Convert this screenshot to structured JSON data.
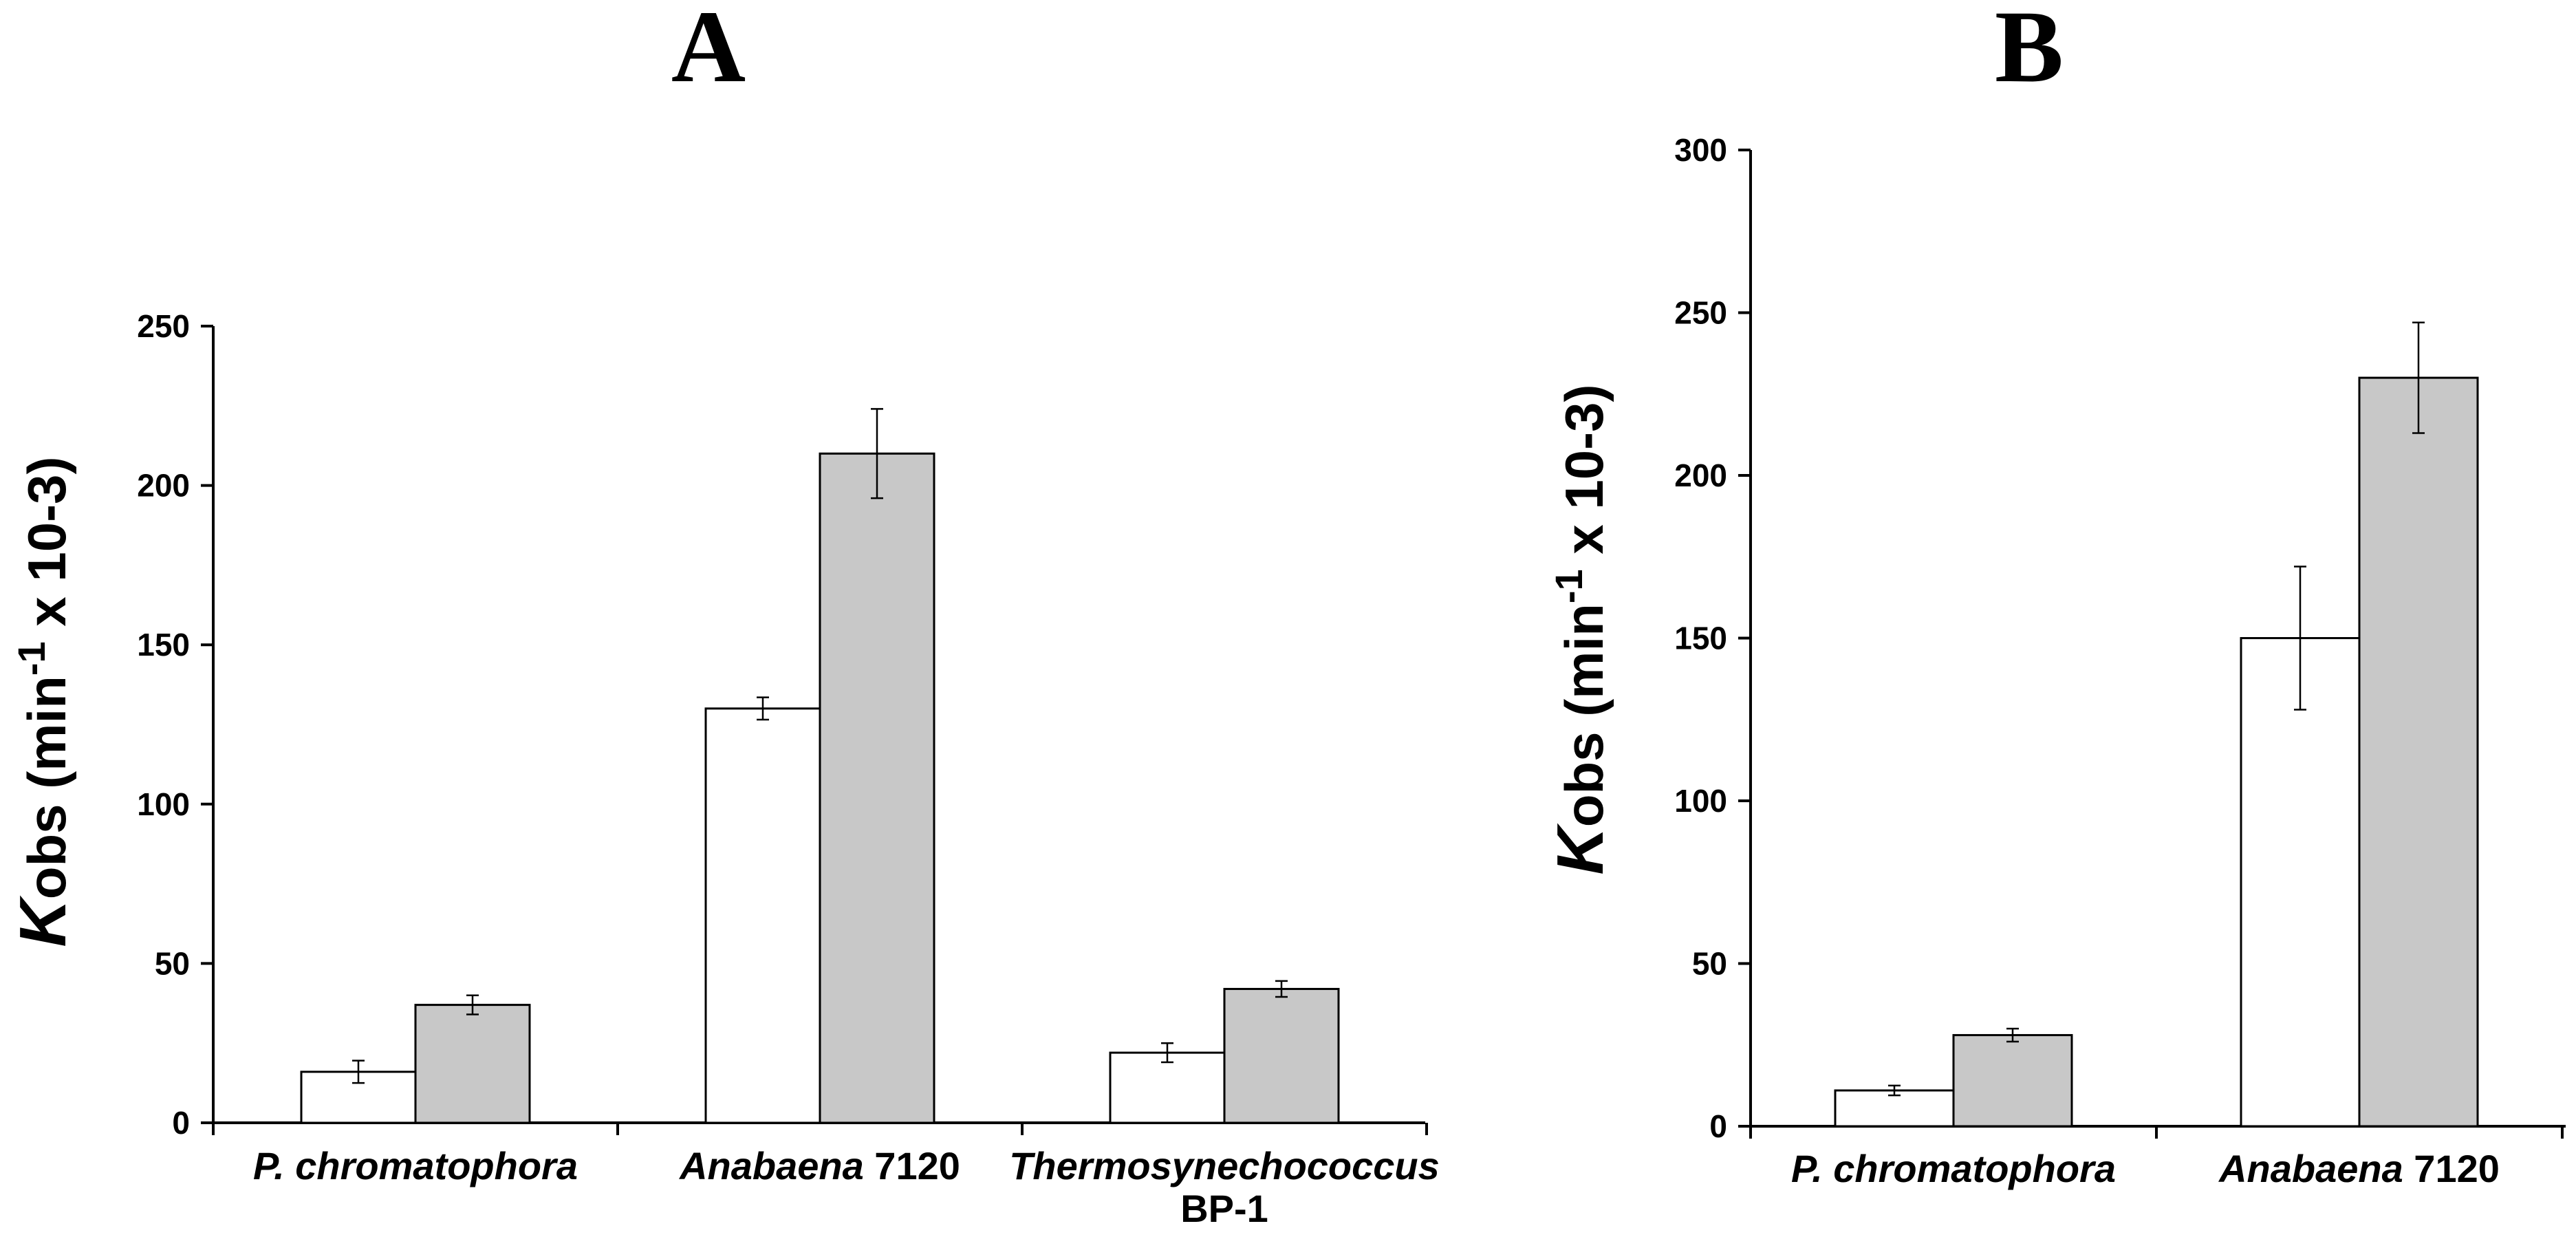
{
  "chart_data": [
    {
      "panel": "A",
      "type": "bar",
      "title": "A",
      "ylabel": {
        "k": "K",
        "obs": "obs",
        "rest": " (min",
        "sup1": "-1",
        "tail": " x 10-3)"
      },
      "ylim": [
        0,
        250
      ],
      "yticks": [
        0,
        50,
        100,
        150,
        200,
        250
      ],
      "categories": [
        {
          "italic": "P. chromatophora",
          "rest": "",
          "line2": ""
        },
        {
          "italic": "Anabaena",
          "rest": " 7120",
          "line2": ""
        },
        {
          "italic": "Thermosynechococcus",
          "rest": "",
          "line2": "BP-1"
        }
      ],
      "series": [
        {
          "name": "white",
          "color": "#ffffff",
          "values": [
            16,
            130,
            22
          ],
          "errors": [
            3.5,
            3.5,
            3
          ]
        },
        {
          "name": "grey",
          "color": "#c8c8c8",
          "values": [
            37,
            210,
            42
          ],
          "errors": [
            3,
            14,
            2.5
          ]
        }
      ]
    },
    {
      "panel": "B",
      "type": "bar",
      "title": "B",
      "ylabel": {
        "k": "K",
        "obs": "obs",
        "rest": " (min",
        "sup1": "-1",
        "tail": " x 10-3)"
      },
      "ylim": [
        0,
        300
      ],
      "yticks": [
        0,
        50,
        100,
        150,
        200,
        250,
        300
      ],
      "categories": [
        {
          "italic": "P. chromatophora",
          "rest": "",
          "line2": ""
        },
        {
          "italic": "Anabaena",
          "rest": " 7120",
          "line2": ""
        }
      ],
      "series": [
        {
          "name": "white",
          "color": "#ffffff",
          "values": [
            11,
            150
          ],
          "errors": [
            1.5,
            22
          ]
        },
        {
          "name": "grey",
          "color": "#c8c8c8",
          "values": [
            28,
            230
          ],
          "errors": [
            2,
            17
          ]
        }
      ]
    }
  ]
}
